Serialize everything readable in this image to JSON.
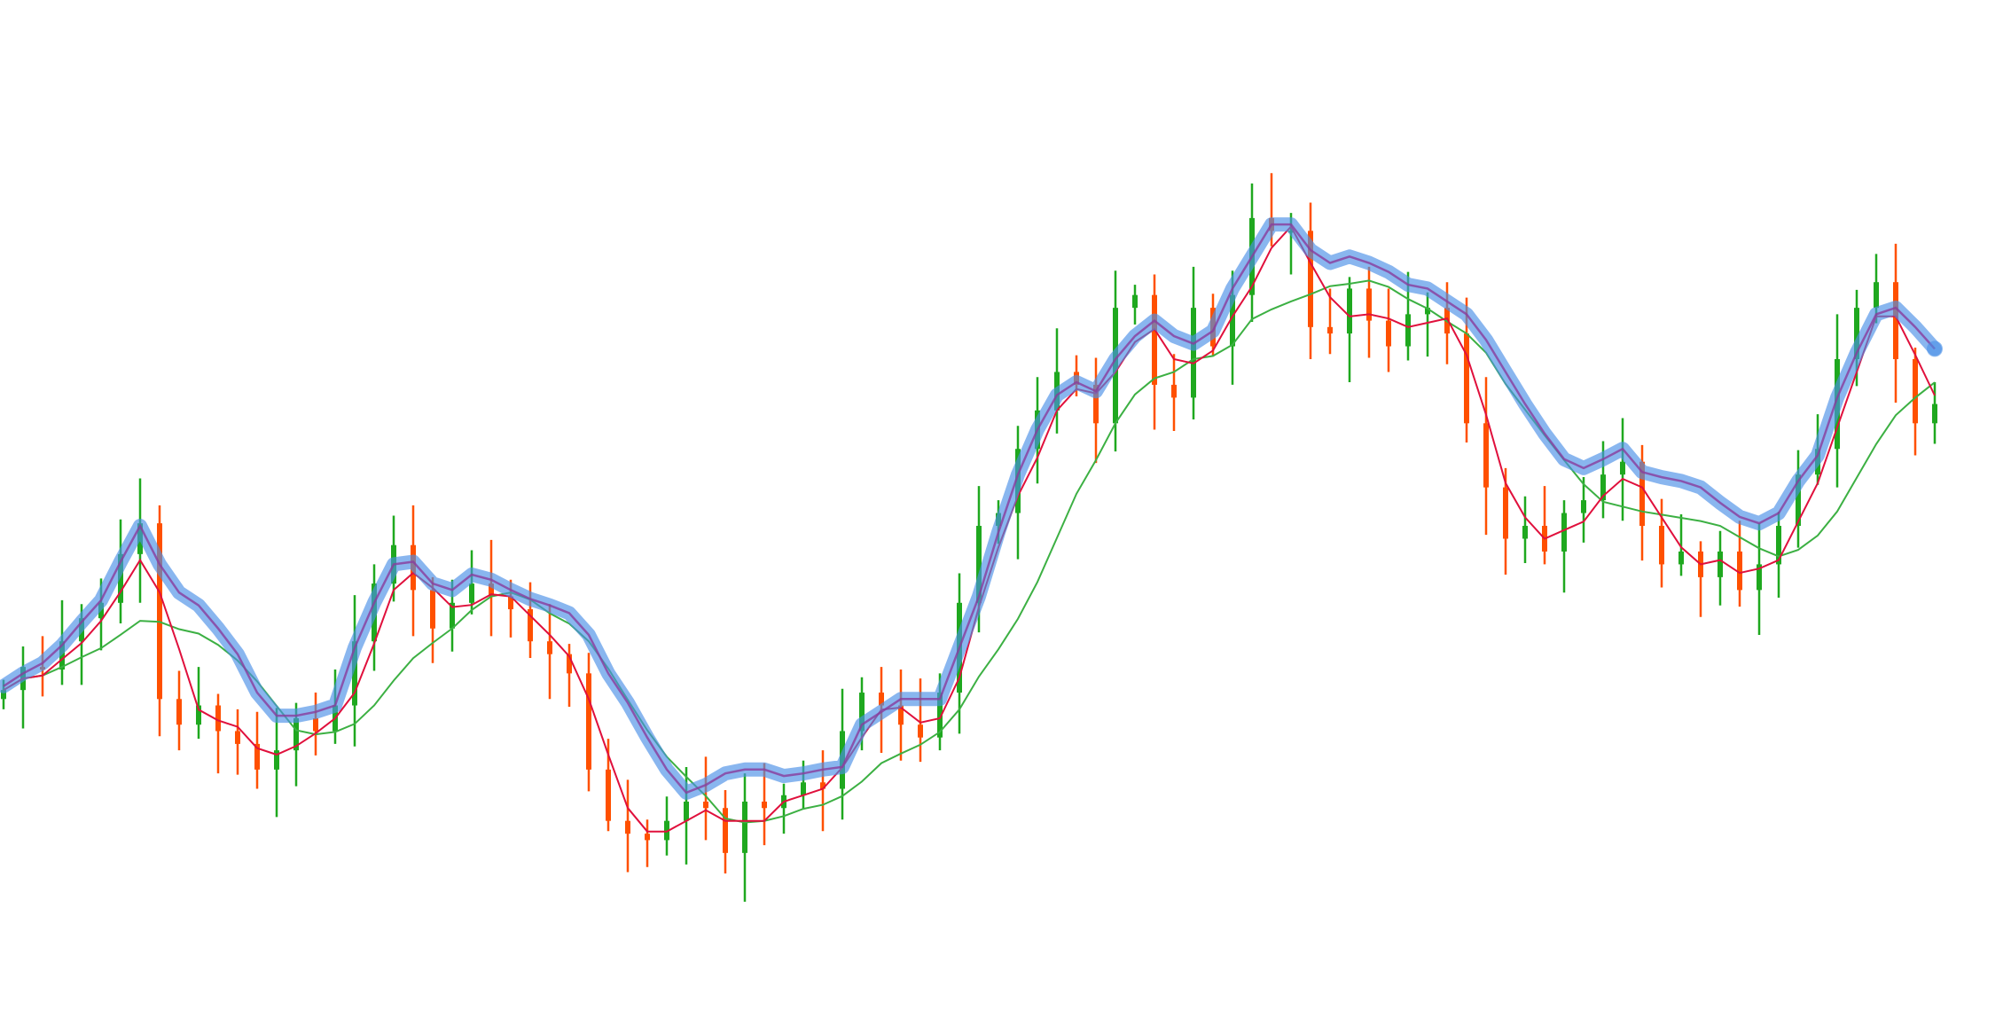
{
  "chart_data": {
    "type": "candlestick",
    "title": "",
    "xlabel": "",
    "ylabel": "",
    "grid": false,
    "legend": "none",
    "ylim": [
      100,
      700
    ],
    "colors": {
      "up": "#1fa81f",
      "down": "#ff5000",
      "smooth_line": "#4a8fe6",
      "smooth_core": "#8a3c9c",
      "fast_ma": "#e0103c",
      "slow_ma": "#3cb043"
    },
    "fast_ma_period": 3,
    "slow_ma_period": 8,
    "close": [
      262,
      280,
      278,
      300,
      318,
      330,
      368,
      392,
      255,
      235,
      250,
      230,
      220,
      200,
      215,
      240,
      230,
      250,
      300,
      345,
      375,
      340,
      310,
      330,
      345,
      335,
      325,
      300,
      290,
      275,
      200,
      160,
      150,
      145,
      160,
      175,
      170,
      135,
      175,
      170,
      180,
      190,
      185,
      230,
      260,
      250,
      235,
      225,
      260,
      330,
      390,
      400,
      450,
      480,
      510,
      500,
      470,
      560,
      570,
      500,
      490,
      560,
      530,
      570,
      630,
      620,
      620,
      545,
      540,
      575,
      550,
      530,
      555,
      560,
      540,
      470,
      420,
      380,
      390,
      370,
      400,
      410,
      430,
      440,
      390,
      360,
      370,
      350,
      370,
      340,
      360,
      390,
      430,
      450,
      520,
      560,
      580,
      520,
      470,
      485
    ],
    "smooth": [
      265,
      275,
      283,
      297,
      315,
      332,
      362,
      390,
      360,
      338,
      328,
      310,
      290,
      260,
      242,
      242,
      245,
      250,
      295,
      330,
      360,
      362,
      345,
      340,
      352,
      348,
      340,
      333,
      328,
      322,
      305,
      275,
      252,
      225,
      200,
      182,
      188,
      197,
      200,
      200,
      195,
      197,
      200,
      202,
      235,
      245,
      255,
      255,
      255,
      295,
      335,
      385,
      430,
      465,
      492,
      502,
      495,
      520,
      538,
      550,
      538,
      532,
      542,
      575,
      600,
      625,
      625,
      605,
      595,
      600,
      595,
      588,
      578,
      575,
      565,
      555,
      535,
      510,
      485,
      462,
      442,
      435,
      442,
      450,
      432,
      428,
      425,
      420,
      408,
      397,
      392,
      400,
      425,
      445,
      490,
      525,
      555,
      560,
      545,
      528
    ]
  }
}
